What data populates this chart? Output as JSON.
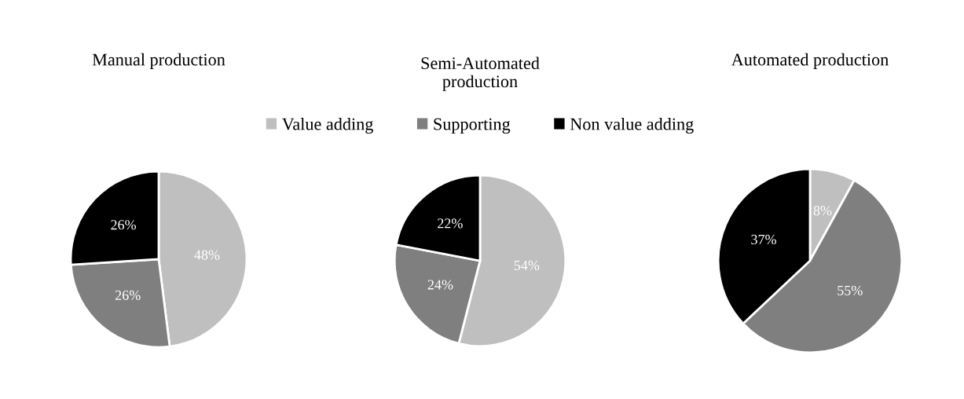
{
  "chart_data": [
    {
      "type": "pie",
      "title": "Manual production",
      "categories": [
        null,
        null,
        null
      ],
      "values": [
        48,
        26,
        26
      ],
      "value_labels": [
        "48%",
        "26%",
        "26%"
      ],
      "colors": [
        "#bfbfbf",
        "#7f7f7f",
        "#000000"
      ]
    },
    {
      "type": "pie",
      "title": "Semi-Automated\nproduction",
      "categories": [
        "Value adding",
        "Supporting",
        "Non value adding"
      ],
      "values": [
        54,
        24,
        22
      ],
      "value_labels": [
        "54%",
        "24%",
        "22%"
      ],
      "colors": [
        "#bfbfbf",
        "#7f7f7f",
        "#000000"
      ],
      "legend": "top"
    },
    {
      "type": "pie",
      "title": "Automated production",
      "categories": [
        null,
        null,
        null
      ],
      "values": [
        8,
        55,
        37
      ],
      "value_labels": [
        "8%",
        "55%",
        "37%"
      ],
      "colors": [
        "#bfbfbf",
        "#7f7f7f",
        "#000000"
      ]
    }
  ]
}
